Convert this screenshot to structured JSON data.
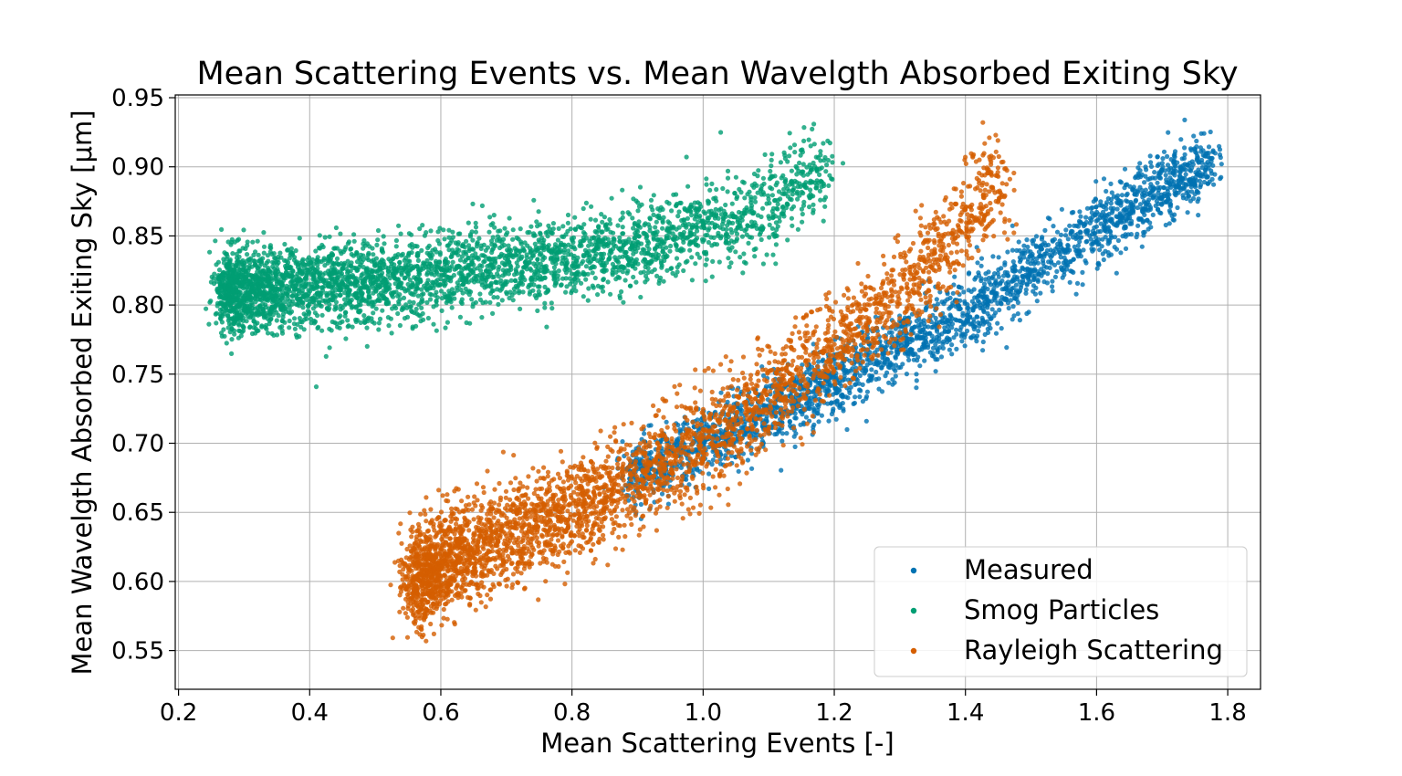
{
  "chart_data": {
    "type": "scatter",
    "title": "Mean Scattering Events vs. Mean Wavelgth Absorbed Exiting Sky",
    "xlabel": "Mean Scattering Events [-]",
    "ylabel": "Mean Wavelgth Absorbed Exiting Sky [μm]",
    "xlim": [
      0.195,
      1.85
    ],
    "ylim": [
      0.522,
      0.952
    ],
    "xticks": [
      0.2,
      0.4,
      0.6,
      0.8,
      1.0,
      1.2,
      1.4,
      1.6,
      1.8
    ],
    "xtick_labels": [
      "0.2",
      "0.4",
      "0.6",
      "0.8",
      "1.0",
      "1.2",
      "1.4",
      "1.6",
      "1.8"
    ],
    "yticks": [
      0.55,
      0.6,
      0.65,
      0.7,
      0.75,
      0.8,
      0.85,
      0.9,
      0.95
    ],
    "ytick_labels": [
      "0.55",
      "0.60",
      "0.65",
      "0.70",
      "0.75",
      "0.80",
      "0.85",
      "0.90",
      "0.95"
    ],
    "grid": true,
    "legend_position": "bottom-right",
    "series": [
      {
        "name": "Measured",
        "color": "#0072b2",
        "x_range": [
          0.88,
          1.78
        ],
        "trend_points": [
          [
            0.88,
            0.675
          ],
          [
            1.0,
            0.7
          ],
          [
            1.2,
            0.745
          ],
          [
            1.4,
            0.795
          ],
          [
            1.6,
            0.855
          ],
          [
            1.78,
            0.905
          ]
        ],
        "spread": 0.012,
        "n_points": 2500
      },
      {
        "name": "Smog Particles",
        "color": "#009e73",
        "x_range": [
          0.27,
          1.19
        ],
        "trend_points": [
          [
            0.27,
            0.81
          ],
          [
            0.5,
            0.815
          ],
          [
            0.7,
            0.83
          ],
          [
            0.9,
            0.84
          ],
          [
            1.1,
            0.87
          ],
          [
            1.18,
            0.9
          ]
        ],
        "spread": 0.015,
        "n_points": 3500
      },
      {
        "name": "Rayleigh Scattering",
        "color": "#d55e00",
        "x_range": [
          0.56,
          1.46
        ],
        "trend_points": [
          [
            0.56,
            0.6
          ],
          [
            0.6,
            0.615
          ],
          [
            0.8,
            0.65
          ],
          [
            1.0,
            0.7
          ],
          [
            1.2,
            0.77
          ],
          [
            1.3,
            0.81
          ],
          [
            1.38,
            0.845
          ],
          [
            1.43,
            0.885
          ]
        ],
        "spread": 0.018,
        "n_points": 3500
      }
    ]
  }
}
